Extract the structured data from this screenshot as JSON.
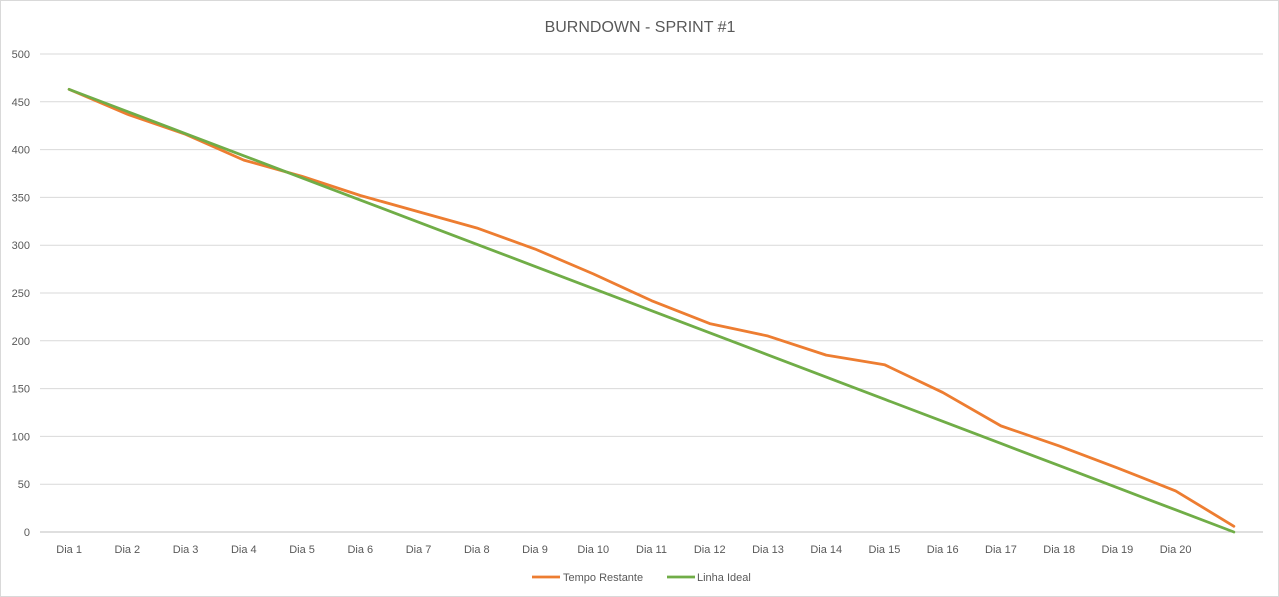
{
  "chart_data": {
    "type": "line",
    "title": "BURNDOWN - SPRINT #1",
    "xlabel": "",
    "ylabel": "",
    "categories": [
      "Dia 1",
      "Dia 2",
      "Dia 3",
      "Dia 4",
      "Dia 5",
      "Dia 6",
      "Dia 7",
      "Dia 8",
      "Dia 9",
      "Dia 10",
      "Dia 11",
      "Dia 12",
      "Dia 13",
      "Dia 14",
      "Dia 15",
      "Dia 16",
      "Dia 17",
      "Dia 18",
      "Dia 19",
      "Dia 20",
      ""
    ],
    "ylim": [
      0,
      500
    ],
    "yticks": [
      "0",
      "50",
      "100",
      "150",
      "200",
      "250",
      "300",
      "350",
      "400",
      "450",
      "500"
    ],
    "grid": true,
    "legend_position": "bottom",
    "series": [
      {
        "name": "Tempo Restante",
        "color": "#ED7D31",
        "values": [
          463,
          437,
          416,
          389,
          372,
          352,
          335,
          318,
          296,
          270,
          242,
          218,
          205,
          185,
          175,
          146,
          111,
          90,
          67,
          43,
          6
        ]
      },
      {
        "name": "Linha Ideal",
        "color": "#70AD47",
        "values": [
          463,
          439.85,
          416.7,
          393.55,
          370.4,
          347.25,
          324.1,
          300.95,
          277.8,
          254.65,
          231.5,
          208.35,
          185.2,
          162.05,
          138.9,
          115.75,
          92.6,
          69.45,
          46.3,
          23.15,
          0
        ]
      }
    ]
  }
}
